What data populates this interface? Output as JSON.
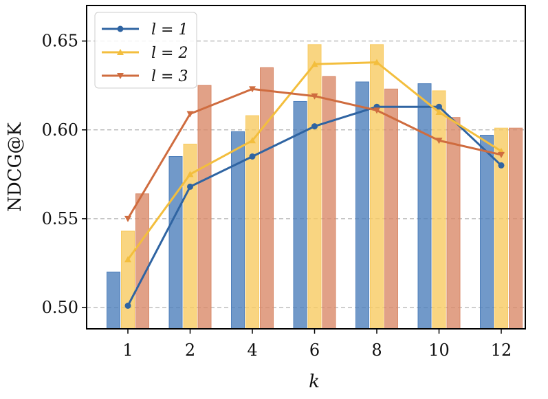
{
  "chart_data": {
    "type": "bar",
    "title": "",
    "xlabel": "k",
    "ylabel": "NDCG@K",
    "categories": [
      "1",
      "2",
      "4",
      "6",
      "8",
      "10",
      "12"
    ],
    "ylim": [
      0.488,
      0.67
    ],
    "yticks": [
      "0.50",
      "0.55",
      "0.60",
      "0.65"
    ],
    "grid": "horizontal dashed",
    "legend_position": "top-left",
    "bar_series": [
      {
        "color": "#4e7fbb",
        "values": [
          0.52,
          0.585,
          0.599,
          0.616,
          0.627,
          0.626,
          0.597
        ]
      },
      {
        "color": "#f8cb62",
        "values": [
          0.543,
          0.592,
          0.608,
          0.648,
          0.648,
          0.622,
          0.601
        ]
      },
      {
        "color": "#d98a69",
        "values": [
          0.564,
          0.625,
          0.635,
          0.63,
          0.623,
          0.607,
          0.601
        ]
      }
    ],
    "line_series": [
      {
        "name": "l = 1",
        "color": "#2f64a2",
        "marker": "circle",
        "values": [
          0.501,
          0.568,
          0.585,
          0.602,
          0.613,
          0.613,
          0.58
        ]
      },
      {
        "name": "l = 2",
        "color": "#f3be3d",
        "marker": "triangle-up",
        "values": [
          0.527,
          0.575,
          0.594,
          0.637,
          0.638,
          0.61,
          0.588
        ]
      },
      {
        "name": "l = 3",
        "color": "#cf6c3f",
        "marker": "triangle-down",
        "values": [
          0.55,
          0.609,
          0.623,
          0.619,
          0.611,
          0.594,
          0.586
        ]
      }
    ]
  }
}
